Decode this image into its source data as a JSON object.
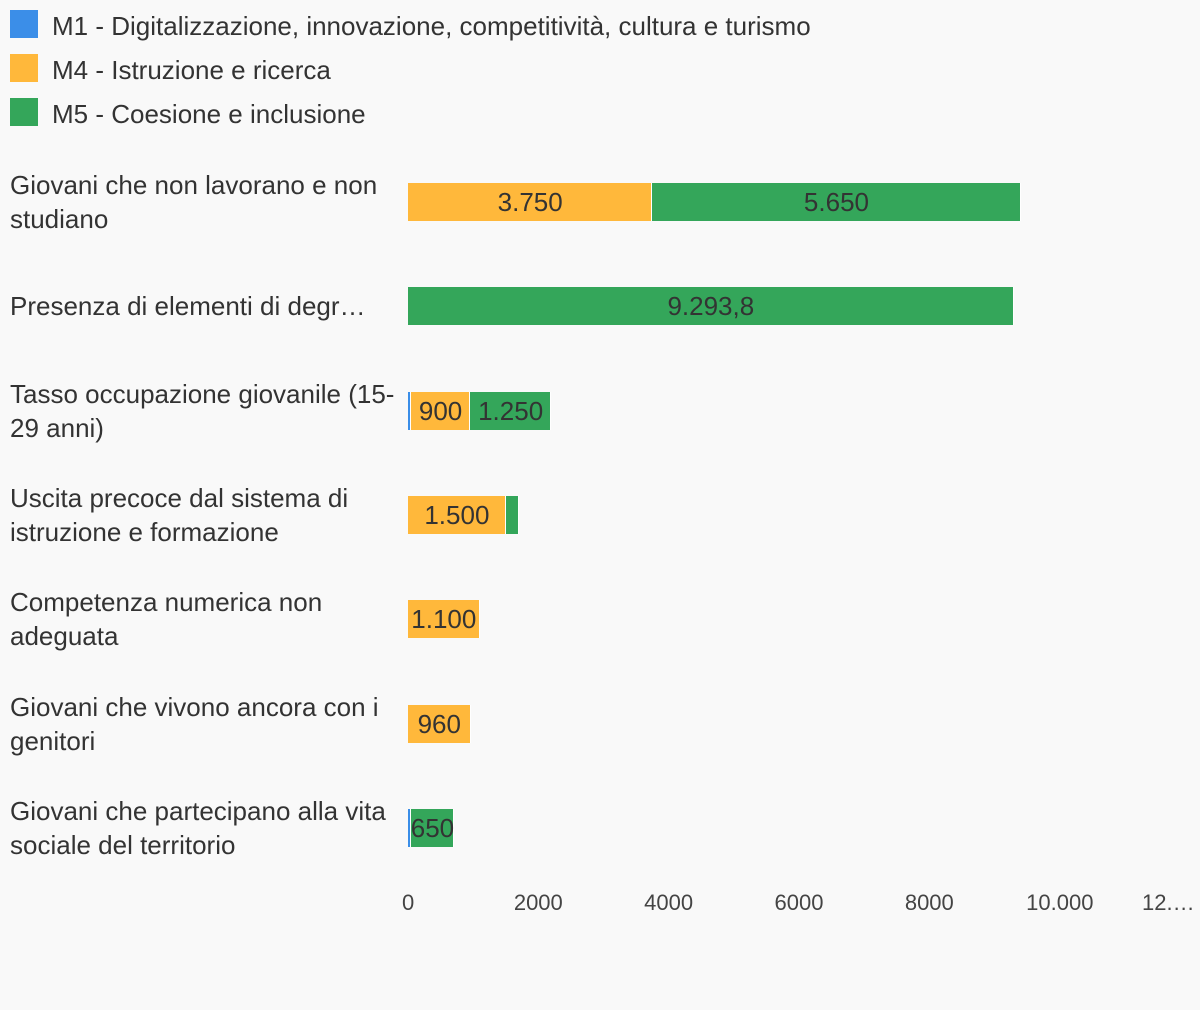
{
  "chart_data": {
    "type": "stacked-bar-horizontal",
    "categories": [
      "Giovani che non lavorano e non studiano",
      "Presenza di elementi di degr…",
      "Tasso occupazione giovanile (15-29 anni)",
      "Uscita precoce dal sistema di istruzione e formazione",
      "Competenza numerica non adeguata",
      "Giovani che vivono ancora con i genitori",
      "Giovani che partecipano alla vita sociale del territorio"
    ],
    "series": [
      {
        "name": "M1 - Digitalizzazione, innovazione, competitività, cultura e turismo",
        "color": "#3b8ee8",
        "values": [
          null,
          null,
          50,
          null,
          null,
          null,
          50
        ],
        "value_labels": [
          null,
          null,
          null,
          null,
          null,
          null,
          null
        ]
      },
      {
        "name": "M4 - Istruzione e ricerca",
        "color": "#ffb83b",
        "values": [
          3750,
          null,
          900,
          1500,
          1100,
          960,
          null
        ],
        "value_labels": [
          "3.750",
          null,
          "900",
          "1.500",
          "1.100",
          "960",
          null
        ]
      },
      {
        "name": "M5 - Coesione e inclusione",
        "color": "#34a65a",
        "values": [
          5650,
          9293.8,
          1250,
          200,
          null,
          null,
          650
        ],
        "value_labels": [
          "5.650",
          "9.293,8",
          "1.250",
          null,
          null,
          null,
          "650"
        ]
      }
    ],
    "xlim": [
      0,
      12000
    ],
    "xticks": [
      0,
      2000,
      4000,
      6000,
      8000,
      {
        "value": 10000,
        "label": "10.000"
      },
      {
        "value": 12000,
        "label": "12.…"
      }
    ],
    "legend": "top-left",
    "grid": false
  }
}
